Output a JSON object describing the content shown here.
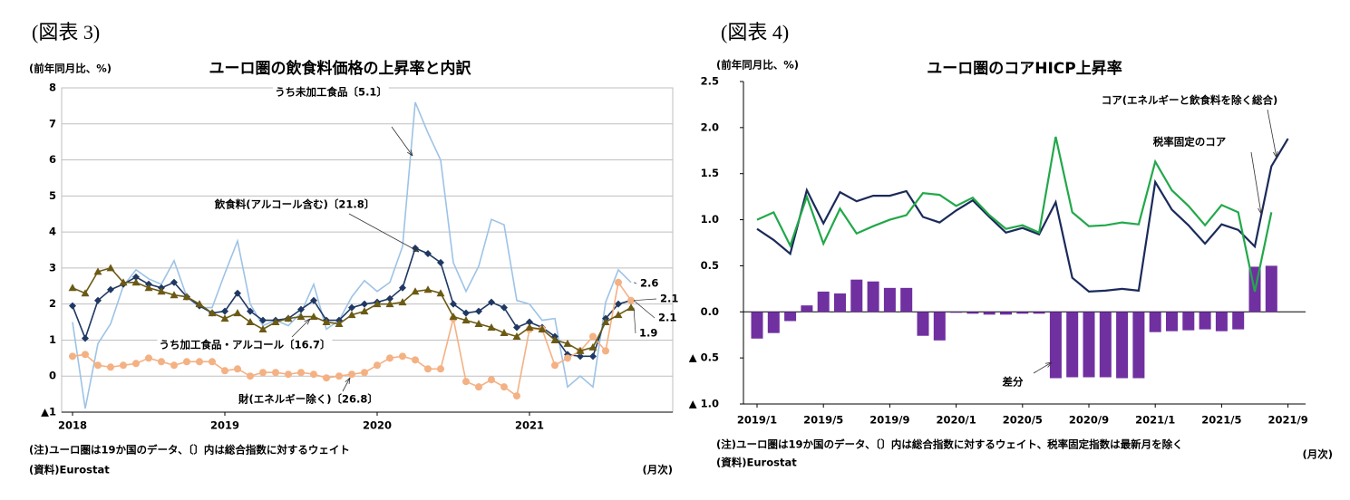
{
  "chart_data": [
    {
      "type": "line",
      "figure_label": "(図表 3)",
      "unit_label": "(前年同月比、%)",
      "title": "ユーロ圏の飲食料価格の上昇率と内訳",
      "note": "(注)ユーロ圏は19か国のデータ、〔〕内は総合指数に対するウェイト",
      "source": "(資料)Eurostat",
      "x_unit": "(月次)",
      "categories": [
        "2018",
        null,
        null,
        null,
        null,
        null,
        null,
        null,
        null,
        null,
        null,
        null,
        "2019",
        null,
        null,
        null,
        null,
        null,
        null,
        null,
        null,
        null,
        null,
        null,
        "2020",
        null,
        null,
        null,
        null,
        null,
        null,
        null,
        null,
        null,
        null,
        null,
        "2021",
        null,
        null,
        null,
        null,
        null,
        null,
        null,
        null
      ],
      "ylim": [
        -1,
        8
      ],
      "yticks": [
        {
          "value": -1,
          "label": "▲1"
        },
        0,
        1,
        2,
        3,
        4,
        5,
        6,
        7,
        8
      ],
      "grid": true,
      "end_labels": true,
      "series": [
        {
          "name": "うち未加工食品〔5.1〕",
          "color": "#9dc3e6",
          "marker": "none",
          "values": [
            1.5,
            -0.9,
            0.9,
            1.45,
            2.5,
            2.95,
            2.7,
            2.55,
            3.2,
            2.2,
            1.9,
            1.9,
            2.85,
            3.75,
            2.0,
            1.4,
            1.55,
            1.4,
            1.75,
            2.55,
            1.3,
            1.55,
            2.2,
            2.65,
            2.35,
            2.6,
            3.6,
            7.6,
            6.75,
            6.0,
            3.15,
            2.35,
            3.05,
            4.35,
            4.2,
            2.1,
            2.0,
            1.55,
            1.6,
            -0.3,
            0.0,
            -0.3,
            2.05,
            2.95,
            2.6
          ]
        },
        {
          "name": "飲食料(アルコール含む)〔21.8〕",
          "color": "#1f3864",
          "marker": "diamond",
          "values": [
            1.95,
            1.05,
            2.1,
            2.4,
            2.55,
            2.75,
            2.55,
            2.45,
            2.6,
            2.2,
            1.95,
            1.75,
            1.8,
            2.3,
            1.8,
            1.55,
            1.55,
            1.6,
            1.85,
            2.1,
            1.55,
            1.55,
            1.9,
            2.0,
            2.05,
            2.15,
            2.45,
            3.55,
            3.4,
            3.15,
            2.0,
            1.75,
            1.8,
            2.05,
            1.9,
            1.35,
            1.5,
            1.35,
            1.1,
            0.6,
            0.55,
            0.55,
            1.6,
            2.0,
            2.1
          ]
        },
        {
          "name": "財(エネルギー除く)〔26.8〕",
          "color": "#f4b183",
          "marker": "circle",
          "values": [
            0.55,
            0.6,
            0.3,
            0.25,
            0.3,
            0.35,
            0.5,
            0.4,
            0.3,
            0.4,
            0.4,
            0.4,
            0.15,
            0.2,
            0.0,
            0.1,
            0.1,
            0.05,
            0.1,
            0.05,
            -0.05,
            0.0,
            0.05,
            0.1,
            0.3,
            0.5,
            0.55,
            0.45,
            0.2,
            0.2,
            1.6,
            -0.15,
            -0.3,
            -0.1,
            -0.3,
            -0.55,
            1.3,
            1.3,
            0.3,
            0.5,
            0.7,
            1.1,
            0.7,
            2.6,
            2.1
          ]
        },
        {
          "name": "うち加工食品・アルコール〔16.7〕",
          "color": "#6b5a14",
          "marker": "triangle",
          "values": [
            2.45,
            2.3,
            2.9,
            3.0,
            2.6,
            2.6,
            2.45,
            2.35,
            2.25,
            2.2,
            2.0,
            1.75,
            1.6,
            1.75,
            1.5,
            1.3,
            1.5,
            1.6,
            1.65,
            1.65,
            1.5,
            1.45,
            1.7,
            1.8,
            2.0,
            2.0,
            2.05,
            2.35,
            2.4,
            2.3,
            1.65,
            1.55,
            1.45,
            1.35,
            1.2,
            1.1,
            1.35,
            1.3,
            1.0,
            0.9,
            0.7,
            0.8,
            1.5,
            1.7,
            1.9
          ]
        }
      ]
    },
    {
      "type": "combo",
      "figure_label": "(図表 4)",
      "unit_label": "(前年同月比、%)",
      "title": "ユーロ圏のコアHICP上昇率",
      "note": "(注)ユーロ圏は19か国のデータ、〔〕内は総合指数に対するウェイト、税率固定指数は最新月を除く",
      "source": "(資料)Eurostat",
      "x_unit": "(月次)",
      "categories": [
        "2019/1",
        null,
        null,
        null,
        "2019/5",
        null,
        null,
        null,
        "2019/9",
        null,
        null,
        null,
        "2020/1",
        null,
        null,
        null,
        "2020/5",
        null,
        null,
        null,
        "2020/9",
        null,
        null,
        null,
        "2021/1",
        null,
        null,
        null,
        "2021/5",
        null,
        null,
        null,
        "2021/9"
      ],
      "ylim": [
        -1,
        2.5
      ],
      "yticks": [
        {
          "value": -1,
          "label": "▲ 1.0"
        },
        {
          "value": -0.5,
          "label": "▲ 0.5"
        },
        {
          "value": 0,
          "label": "0.0"
        },
        0.5,
        {
          "value": 1,
          "label": "1.0"
        },
        1.5,
        {
          "value": 2,
          "label": "2.0"
        },
        2.5
      ],
      "grid": false,
      "series": [
        {
          "name": "差分",
          "type": "bar",
          "color": "#7030a0",
          "values": [
            -0.29,
            -0.23,
            -0.1,
            0.07,
            0.22,
            0.2,
            0.35,
            0.33,
            0.26,
            0.26,
            -0.26,
            -0.31,
            -0.01,
            -0.02,
            -0.03,
            -0.03,
            -0.02,
            -0.02,
            -0.72,
            -0.71,
            -0.71,
            -0.71,
            -0.72,
            -0.72,
            -0.22,
            -0.21,
            -0.2,
            -0.19,
            -0.21,
            -0.19,
            0.49,
            0.5,
            null
          ]
        },
        {
          "name": "コア(エネルギーと飲食料を除く総合)",
          "type": "line",
          "color": "#1a2a5a",
          "values": [
            0.9,
            0.78,
            0.63,
            1.32,
            0.96,
            1.3,
            1.2,
            1.26,
            1.26,
            1.31,
            1.03,
            0.97,
            1.1,
            1.21,
            1.03,
            0.86,
            0.91,
            0.84,
            1.19,
            0.37,
            0.22,
            0.23,
            0.25,
            0.23,
            1.41,
            1.11,
            0.94,
            0.74,
            0.95,
            0.89,
            0.71,
            1.58,
            1.88
          ]
        },
        {
          "name": "税率固定のコア",
          "type": "line",
          "color": "#22a84a",
          "values": [
            1.0,
            1.08,
            0.72,
            1.25,
            0.74,
            1.12,
            0.85,
            0.93,
            1.0,
            1.05,
            1.29,
            1.27,
            1.15,
            1.24,
            1.05,
            0.9,
            0.94,
            0.86,
            1.9,
            1.08,
            0.93,
            0.94,
            0.97,
            0.95,
            1.63,
            1.32,
            1.15,
            0.94,
            1.16,
            1.08,
            0.22,
            1.08,
            null
          ]
        }
      ]
    }
  ]
}
